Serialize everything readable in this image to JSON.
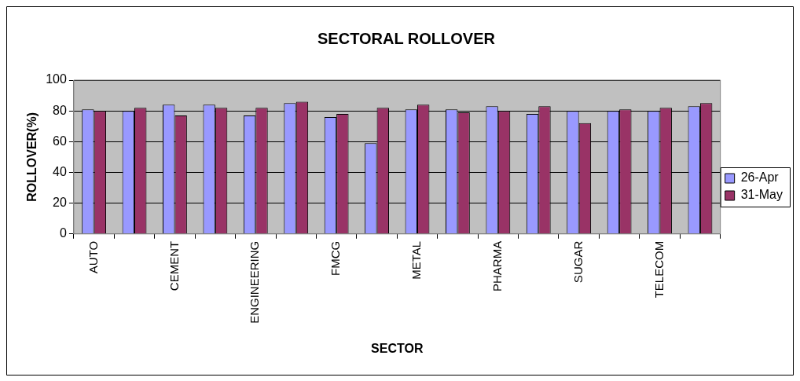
{
  "chart_data": {
    "type": "bar",
    "title": "SECTORAL ROLLOVER",
    "xlabel": "SECTOR",
    "ylabel": "ROLLOVER(%)",
    "categories": [
      "AUTO",
      null,
      "CEMENT",
      null,
      "ENGINEERING",
      null,
      "FMCG",
      null,
      "METAL",
      null,
      "PHARMA",
      null,
      "SUGAR",
      null,
      "TELECOM",
      null
    ],
    "series": [
      {
        "name": "26-Apr",
        "color": "#9999ff",
        "values": [
          81,
          80,
          84,
          84,
          77,
          85,
          76,
          59,
          81,
          81,
          83,
          78,
          80,
          80,
          80,
          83
        ]
      },
      {
        "name": "31-May",
        "color": "#993366",
        "values": [
          80,
          82,
          77,
          82,
          82,
          86,
          78,
          82,
          84,
          79,
          80,
          83,
          72,
          81,
          82,
          85
        ]
      }
    ],
    "ylim": [
      0,
      100
    ],
    "yticks": [
      0,
      20,
      40,
      60,
      80,
      100
    ],
    "grid": "y",
    "legend": "right"
  }
}
